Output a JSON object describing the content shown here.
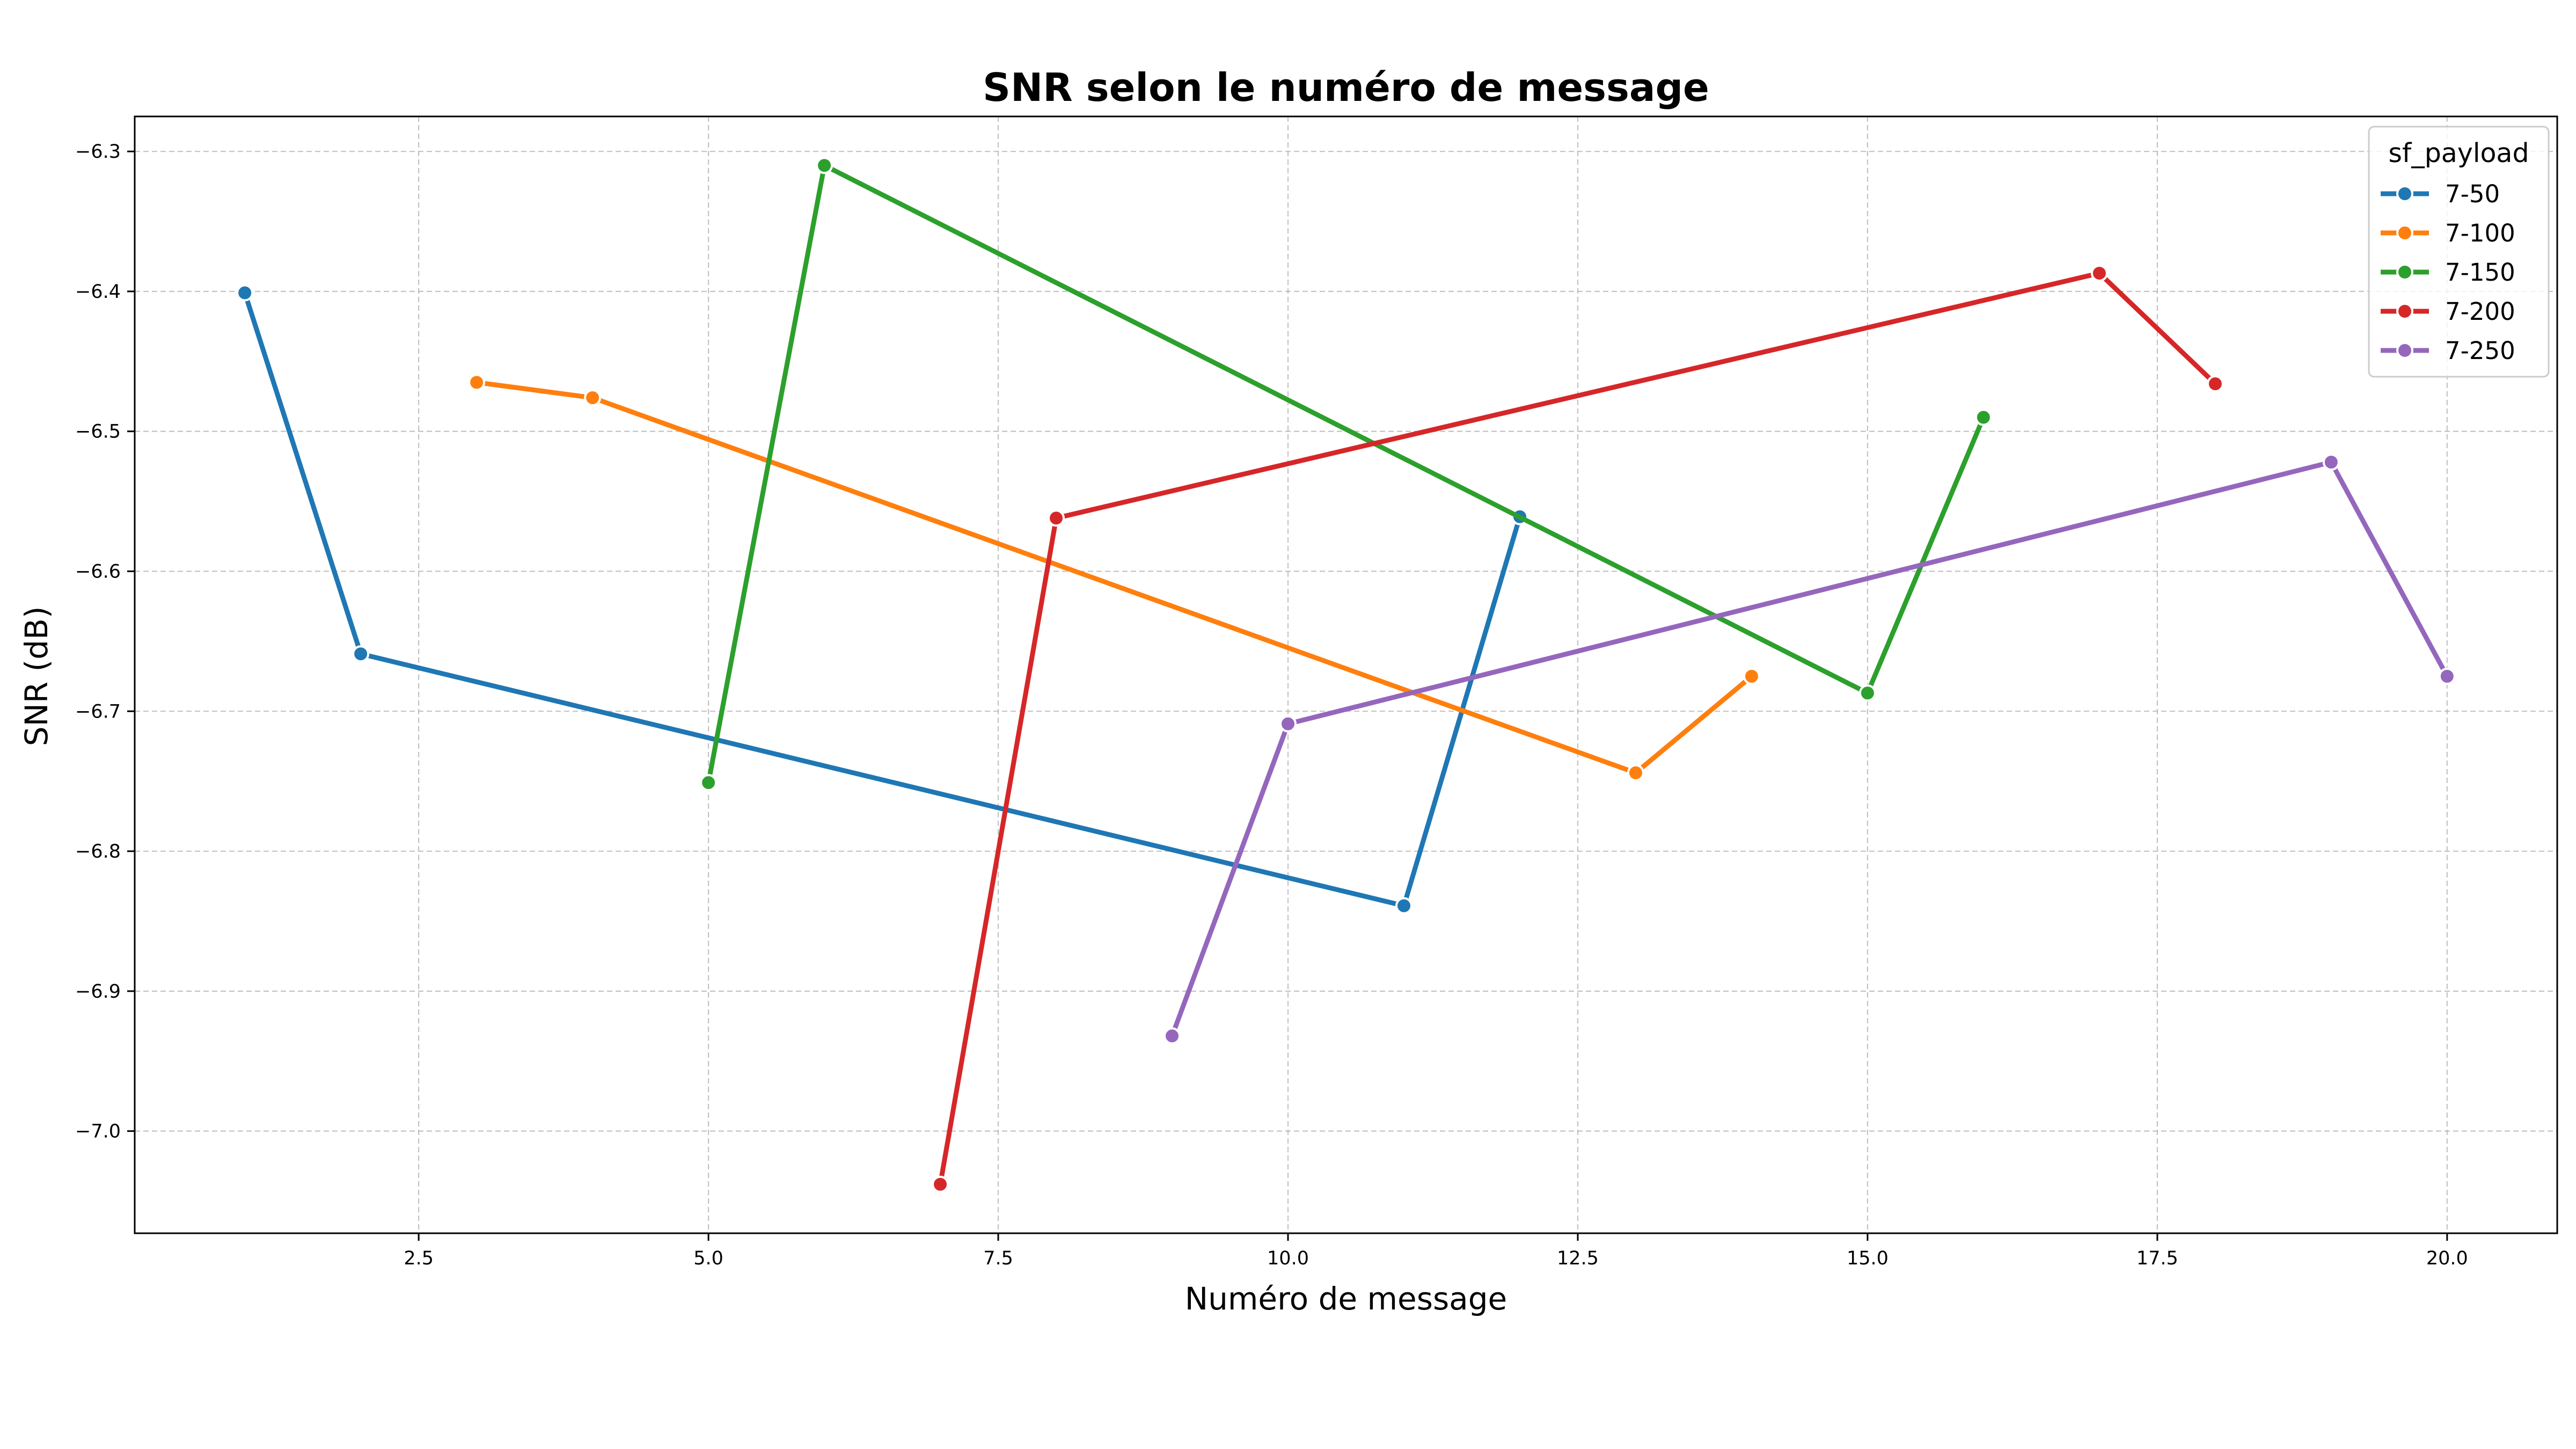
{
  "chart_data": {
    "type": "line",
    "title": "SNR selon le numéro de message",
    "xlabel": "Numéro de message",
    "ylabel": "SNR (dB)",
    "xlim": [
      0.05,
      20.95
    ],
    "ylim": [
      -7.073,
      -6.275
    ],
    "xticks": [
      2.5,
      5.0,
      7.5,
      10.0,
      12.5,
      15.0,
      17.5,
      20.0
    ],
    "xtick_labels": [
      "2.5",
      "5.0",
      "7.5",
      "10.0",
      "12.5",
      "15.0",
      "17.5",
      "20.0"
    ],
    "yticks": [
      -6.3,
      -6.4,
      -6.5,
      -6.6,
      -6.7,
      -6.8,
      -6.9,
      -7.0
    ],
    "ytick_labels": [
      "−6.3",
      "−6.4",
      "−6.5",
      "−6.6",
      "−6.7",
      "−6.8",
      "−6.9",
      "−7.0"
    ],
    "grid": true,
    "legend": {
      "title": "sf_payload",
      "placement": "top-right"
    },
    "series": [
      {
        "name": "7-50",
        "color": "#1f77b4",
        "points": [
          {
            "x": 1,
            "y": -6.401
          },
          {
            "x": 2,
            "y": -6.659
          },
          {
            "x": 11,
            "y": -6.839
          },
          {
            "x": 12,
            "y": -6.561
          }
        ]
      },
      {
        "name": "7-100",
        "color": "#ff7f0e",
        "points": [
          {
            "x": 3,
            "y": -6.465
          },
          {
            "x": 4,
            "y": -6.476
          },
          {
            "x": 13,
            "y": -6.744
          },
          {
            "x": 14,
            "y": -6.675
          }
        ]
      },
      {
        "name": "7-150",
        "color": "#2ca02c",
        "points": [
          {
            "x": 5,
            "y": -6.751
          },
          {
            "x": 6,
            "y": -6.31
          },
          {
            "x": 15,
            "y": -6.687
          },
          {
            "x": 16,
            "y": -6.49
          }
        ]
      },
      {
        "name": "7-200",
        "color": "#d62728",
        "points": [
          {
            "x": 7,
            "y": -7.038
          },
          {
            "x": 8,
            "y": -6.562
          },
          {
            "x": 17,
            "y": -6.387
          },
          {
            "x": 18,
            "y": -6.466
          }
        ]
      },
      {
        "name": "7-250",
        "color": "#9467bd",
        "points": [
          {
            "x": 9,
            "y": -6.932
          },
          {
            "x": 10,
            "y": -6.709
          },
          {
            "x": 19,
            "y": -6.522
          },
          {
            "x": 20,
            "y": -6.675
          }
        ]
      }
    ]
  }
}
